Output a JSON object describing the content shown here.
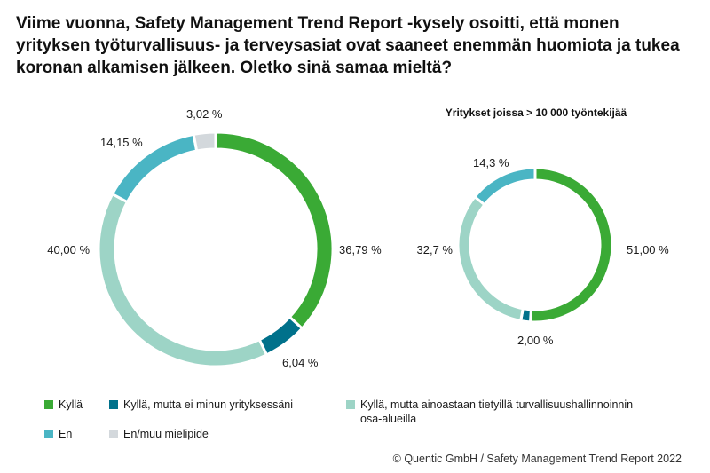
{
  "title": "Viime vuonna, Safety Management Trend Report -kysely osoitti, että monen yrityksen työturvallisuus- ja terveysasiat ovat saaneet enemmän huomiota ja tukea koronan alkamisen jälkeen. Oletko sinä samaa mieltä?",
  "colors": {
    "kylla": "#3aaa35",
    "kylla_ei_minun": "#00718b",
    "kylla_osa": "#9dd4c6",
    "en": "#4ab5c4",
    "en_muu": "#d3d8dc"
  },
  "legend": [
    {
      "key": "kylla",
      "label": "Kyllä"
    },
    {
      "key": "kylla_ei_minun",
      "label": "Kyllä, mutta ei minun yrityksessäni"
    },
    {
      "key": "kylla_osa",
      "label": "Kyllä, mutta ainoastaan tietyillä turvallisuushallinnoinnin osa-alueilla"
    },
    {
      "key": "en",
      "label": "En"
    },
    {
      "key": "en_muu",
      "label": "En/muu mielipide"
    }
  ],
  "chart_data": [
    {
      "type": "pie",
      "title": "",
      "categories": [
        "Kyllä",
        "Kyllä, mutta ei minun yrityksessäni",
        "Kyllä, mutta ainoastaan tietyillä turvallisuushallinnoinnin osa-alueilla",
        "En",
        "En/muu mielipide"
      ],
      "values": [
        36.79,
        6.04,
        40.0,
        14.15,
        3.02
      ],
      "labels": [
        "36,79 %",
        "6,04 %",
        "40,00 %",
        "14,15 %",
        "3,02 %"
      ],
      "keys": [
        "kylla",
        "kylla_ei_minun",
        "kylla_osa",
        "en",
        "en_muu"
      ]
    },
    {
      "type": "pie",
      "title": "Yritykset joissa > 10 000 työntekijää",
      "categories": [
        "Kyllä",
        "Kyllä, mutta ei minun yrityksessäni",
        "Kyllä, mutta ainoastaan tietyillä turvallisuushallinnoinnin osa-alueilla",
        "En"
      ],
      "values": [
        51.0,
        2.0,
        32.7,
        14.3
      ],
      "labels": [
        "51,00 %",
        "2,00 %",
        "32,7 %",
        "14,3 %"
      ],
      "keys": [
        "kylla",
        "kylla_ei_minun",
        "kylla_osa",
        "en"
      ]
    }
  ],
  "copyright": "© Quentic GmbH / Safety Management Trend Report 2022"
}
